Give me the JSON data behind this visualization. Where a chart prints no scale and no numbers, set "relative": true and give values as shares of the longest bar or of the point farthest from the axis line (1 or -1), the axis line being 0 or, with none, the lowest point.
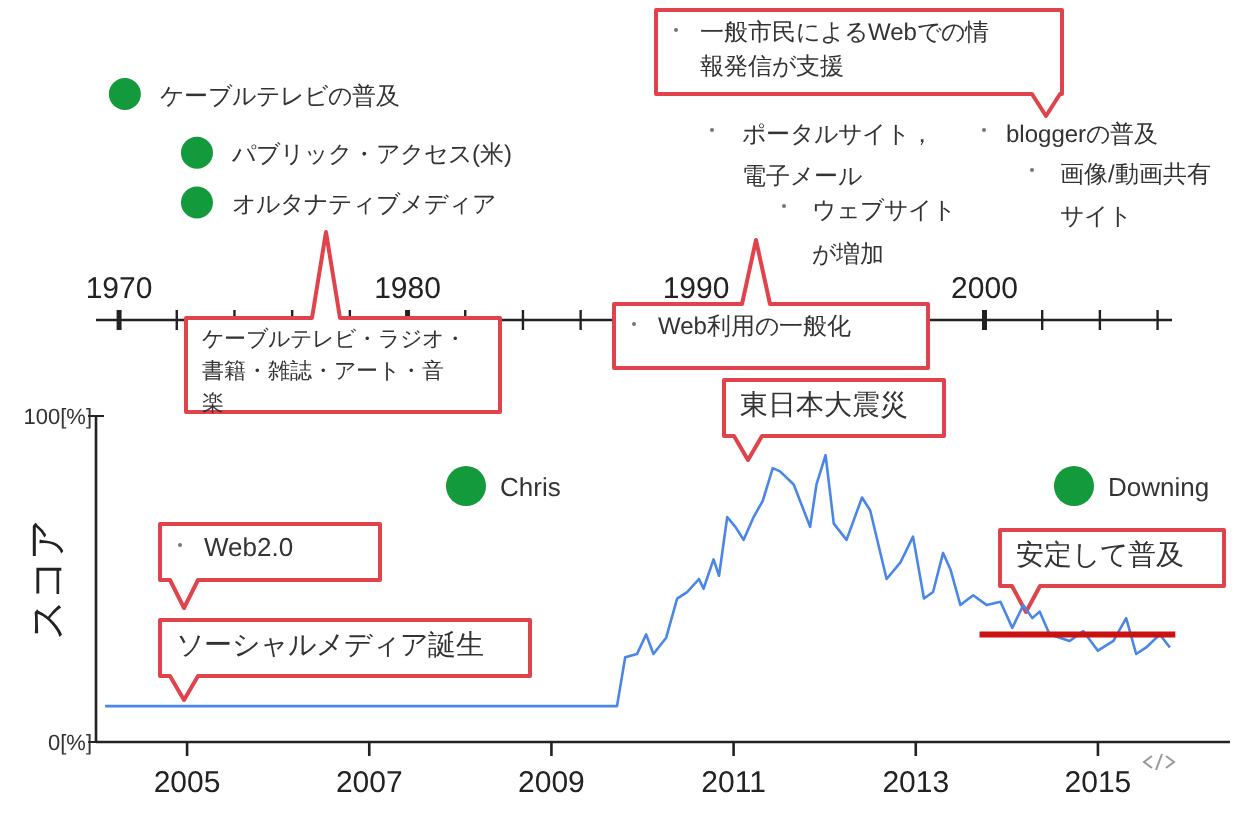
{
  "chart_data": [
    {
      "type": "scatter",
      "relative": true,
      "xlim": [
        1969.2,
        2006.5
      ],
      "xticks": [
        1970,
        {
          "value": 1972,
          "label": null
        },
        {
          "value": 1974,
          "label": null
        },
        {
          "value": 1976,
          "label": null
        },
        {
          "value": 1978,
          "label": null
        },
        1980,
        {
          "value": 1982,
          "label": null
        },
        {
          "value": 1984,
          "label": null
        },
        {
          "value": 1986,
          "label": null
        },
        {
          "value": 1988,
          "label": null
        },
        1990,
        {
          "value": 1992,
          "label": null
        },
        {
          "value": 1994,
          "label": null
        },
        {
          "value": 1996,
          "label": null
        },
        {
          "value": 1998,
          "label": null
        },
        2000,
        {
          "value": 2002,
          "label": null
        },
        {
          "value": 2004,
          "label": null
        },
        {
          "value": 2006,
          "label": null
        }
      ],
      "series": [
        {
          "color": "#129a3c",
          "x": [
            1970.2,
            1972.7,
            1972.7
          ],
          "values": [
            1,
            0.74,
            0.52
          ]
        }
      ],
      "annotations": [
        "ケーブルテレビの普及",
        "パブリック・アクセス(米)",
        "オルタナティブメディア",
        "ケーブルテレビ・ラジオ・書籍・雑誌・アート・音楽",
        "Web利用の一般化",
        "一般市民によるWebでの情報発信が支援",
        "ポータルサイト，電子メール",
        "ウェブサイトが増加",
        "bloggerの普及",
        "画像/動画共有サイト"
      ]
    },
    {
      "type": "line",
      "ylabel": "スコア",
      "xlim": [
        2004,
        2016.45
      ],
      "xticks": [
        2005,
        2007,
        2009,
        2011,
        2013,
        2015
      ],
      "ylim": [
        0,
        100
      ],
      "yticks": [
        {
          "value": 0,
          "label": "0[%]"
        },
        {
          "value": 100,
          "label": "100[%]"
        }
      ],
      "series": [
        {
          "color": "#4a86e8",
          "x": [
            2004.1,
            2009.72,
            2009.81,
            2009.94,
            2010.04,
            2010.12,
            2010.26,
            2010.38,
            2010.49,
            2010.62,
            2010.67,
            2010.78,
            2010.84,
            2010.93,
            2011.02,
            2011.11,
            2011.22,
            2011.32,
            2011.43,
            2011.51,
            2011.66,
            2011.84,
            2011.91,
            2012.01,
            2012.1,
            2012.24,
            2012.41,
            2012.5,
            2012.68,
            2012.83,
            2012.97,
            2013.09,
            2013.19,
            2013.3,
            2013.38,
            2013.49,
            2013.63,
            2013.78,
            2013.93,
            2014.06,
            2014.18,
            2014.28,
            2014.36,
            2014.47,
            2014.69,
            2014.84,
            2015.0,
            2015.17,
            2015.31,
            2015.42,
            2015.53,
            2015.68,
            2015.79
          ],
          "values": [
            11,
            11,
            26,
            27,
            33,
            27,
            32,
            44,
            46,
            50,
            47,
            56,
            51,
            69,
            66,
            62,
            69,
            74,
            84,
            83,
            79,
            66,
            79,
            88,
            67,
            62,
            75,
            71,
            50,
            55,
            63,
            44,
            46,
            58,
            53,
            42,
            45,
            42,
            43,
            35,
            42,
            38,
            40,
            33,
            31,
            34,
            28,
            31,
            38,
            27,
            29,
            33,
            29
          ]
        },
        {
          "color": "#cc1111",
          "x": [
            2013.7,
            2015.85
          ],
          "values": [
            33,
            33
          ]
        }
      ],
      "annotations": [
        "東日本大震災",
        "Web2.0",
        "ソーシャルメディア誕生",
        "安定して普及",
        "Chris",
        "Downing"
      ]
    }
  ]
}
